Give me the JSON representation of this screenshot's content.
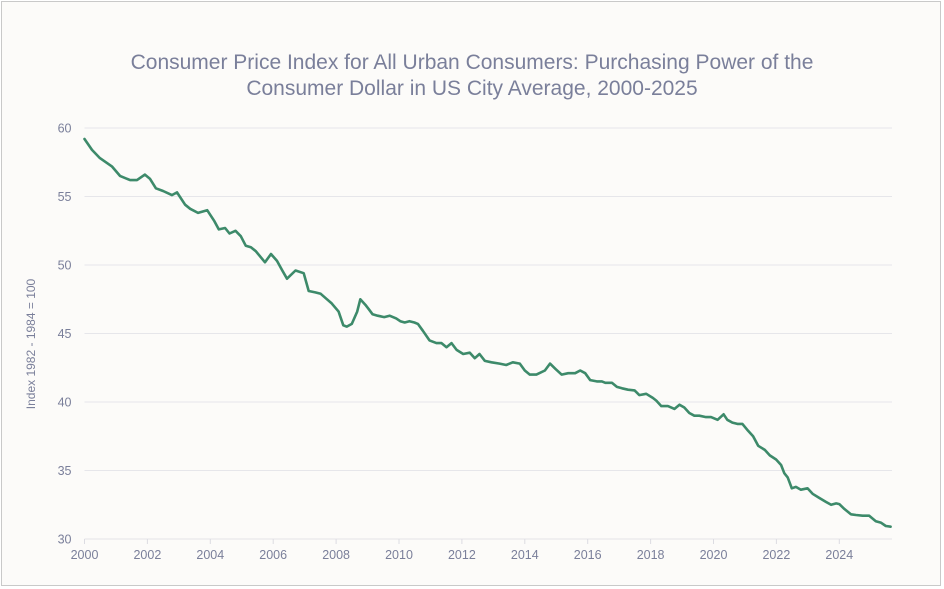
{
  "chart_data": {
    "type": "line",
    "title": "Consumer Price Index for All Urban Consumers: Purchasing Power of the Consumer Dollar in US City Average, 2000-2025",
    "title_lines": [
      "Consumer Price Index for All Urban Consumers: Purchasing Power of the",
      "Consumer Dollar in US City Average, 2000-2025"
    ],
    "xlabel": "",
    "ylabel": "Index 1982 - 1984 = 100",
    "xlim": [
      2000,
      2025.67
    ],
    "ylim": [
      30,
      60
    ],
    "xticks": [
      "2000",
      "2002",
      "2004",
      "2006",
      "2008",
      "2010",
      "2012",
      "2014",
      "2016",
      "2018",
      "2020",
      "2022",
      "2024"
    ],
    "yticks": [
      "30",
      "35",
      "40",
      "45",
      "50",
      "55",
      "60"
    ],
    "grid": "horizontal",
    "legend": "none",
    "line_color": "#3d8a6a",
    "series": [
      {
        "name": "Purchasing Power of the Consumer Dollar",
        "x": [
          2000.0,
          2000.24,
          2000.49,
          2000.87,
          2001.13,
          2001.45,
          2001.67,
          2001.92,
          2002.08,
          2002.27,
          2002.5,
          2002.78,
          2002.94,
          2003.2,
          2003.36,
          2003.61,
          2003.9,
          2004.13,
          2004.27,
          2004.47,
          2004.61,
          2004.8,
          2004.97,
          2005.13,
          2005.29,
          2005.45,
          2005.74,
          2005.93,
          2006.12,
          2006.29,
          2006.44,
          2006.71,
          2006.97,
          2007.13,
          2007.34,
          2007.51,
          2007.71,
          2007.86,
          2008.08,
          2008.23,
          2008.34,
          2008.5,
          2008.67,
          2008.77,
          2008.93,
          2009.03,
          2009.16,
          2009.32,
          2009.53,
          2009.7,
          2009.91,
          2010.04,
          2010.18,
          2010.33,
          2010.49,
          2010.6,
          2010.76,
          2010.97,
          2011.19,
          2011.35,
          2011.51,
          2011.67,
          2011.83,
          2012.04,
          2012.25,
          2012.41,
          2012.56,
          2012.73,
          2012.94,
          2013.2,
          2013.41,
          2013.62,
          2013.84,
          2014.0,
          2014.16,
          2014.37,
          2014.64,
          2014.8,
          2014.98,
          2015.17,
          2015.38,
          2015.6,
          2015.76,
          2015.92,
          2016.08,
          2016.29,
          2016.45,
          2016.56,
          2016.77,
          2016.93,
          2017.09,
          2017.28,
          2017.49,
          2017.64,
          2017.86,
          2018.07,
          2018.18,
          2018.34,
          2018.55,
          2018.76,
          2018.92,
          2019.07,
          2019.23,
          2019.39,
          2019.55,
          2019.76,
          2019.92,
          2020.13,
          2020.32,
          2020.44,
          2020.6,
          2020.76,
          2020.92,
          2021.1,
          2021.26,
          2021.42,
          2021.63,
          2021.79,
          2021.99,
          2022.15,
          2022.25,
          2022.36,
          2022.49,
          2022.62,
          2022.78,
          2022.99,
          2023.15,
          2023.36,
          2023.58,
          2023.74,
          2023.9,
          2024.0,
          2024.16,
          2024.37,
          2024.53,
          2024.74,
          2024.95,
          2025.16,
          2025.32,
          2025.48,
          2025.63
        ],
        "values": [
          59.2,
          58.4,
          57.8,
          57.2,
          56.5,
          56.2,
          56.2,
          56.6,
          56.3,
          55.6,
          55.4,
          55.1,
          55.3,
          54.4,
          54.1,
          53.8,
          54.0,
          53.2,
          52.6,
          52.7,
          52.3,
          52.5,
          52.1,
          51.4,
          51.3,
          51.0,
          50.2,
          50.8,
          50.3,
          49.6,
          49.0,
          49.6,
          49.4,
          48.1,
          48.0,
          47.9,
          47.5,
          47.2,
          46.6,
          45.6,
          45.5,
          45.7,
          46.6,
          47.5,
          47.1,
          46.8,
          46.4,
          46.3,
          46.2,
          46.3,
          46.1,
          45.9,
          45.8,
          45.9,
          45.8,
          45.7,
          45.2,
          44.5,
          44.3,
          44.3,
          44.0,
          44.3,
          43.8,
          43.5,
          43.6,
          43.2,
          43.5,
          43.0,
          42.9,
          42.8,
          42.7,
          42.9,
          42.8,
          42.3,
          42.0,
          42.0,
          42.3,
          42.8,
          42.4,
          42.0,
          42.1,
          42.1,
          42.3,
          42.1,
          41.6,
          41.5,
          41.5,
          41.4,
          41.4,
          41.1,
          41.0,
          40.9,
          40.85,
          40.5,
          40.6,
          40.3,
          40.1,
          39.7,
          39.7,
          39.5,
          39.8,
          39.6,
          39.2,
          39.0,
          39.0,
          38.9,
          38.9,
          38.7,
          39.1,
          38.7,
          38.5,
          38.4,
          38.4,
          37.9,
          37.5,
          36.8,
          36.5,
          36.1,
          35.8,
          35.4,
          34.8,
          34.5,
          33.7,
          33.8,
          33.6,
          33.7,
          33.3,
          33.0,
          32.7,
          32.5,
          32.6,
          32.55,
          32.2,
          31.8,
          31.75,
          31.7,
          31.7,
          31.3,
          31.2,
          30.95,
          30.9
        ]
      }
    ]
  }
}
